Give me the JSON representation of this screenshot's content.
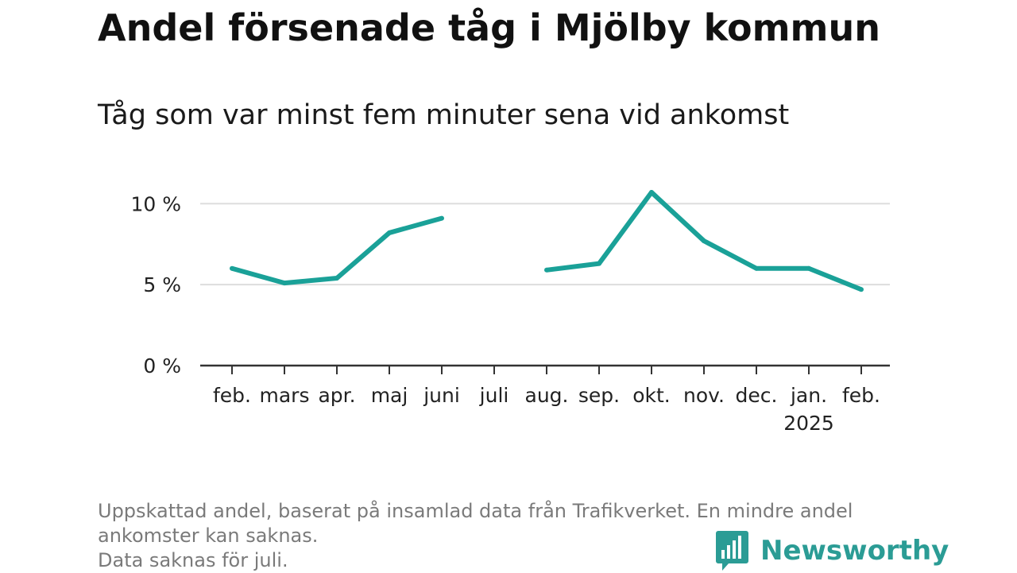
{
  "title": "Andel försenade tåg i Mjölby kommun",
  "subtitle": "Tåg som var minst fem minuter sena vid ankomst",
  "footnote": {
    "line1": "Uppskattad andel, baserat på insamlad data från Trafikverket. En mindre andel",
    "line2": "ankomster kan saknas.",
    "line3": "Data saknas för juli."
  },
  "brand": {
    "name": "Newsworthy",
    "icon": "bar-chart-speech-bubble-icon",
    "color": "#2b9c95"
  },
  "chart_data": {
    "type": "line",
    "categories": [
      "feb.",
      "mars",
      "apr.",
      "maj",
      "juni",
      "juli",
      "aug.",
      "sep.",
      "okt.",
      "nov.",
      "dec.",
      "jan.",
      "feb."
    ],
    "year_labels": [
      "",
      "",
      "",
      "",
      "",
      "",
      "",
      "",
      "",
      "",
      "",
      "2025",
      ""
    ],
    "series": [
      {
        "values": [
          6.0,
          5.1,
          5.4,
          8.2,
          9.1,
          null,
          5.9,
          6.3,
          10.7,
          7.7,
          6.0,
          6.0,
          4.7
        ],
        "color": "#1aa198"
      }
    ],
    "ylim": [
      0,
      10.7
    ],
    "yticks": [
      0,
      5,
      10
    ],
    "ytick_labels": [
      "0 %",
      "5 %",
      "10 %"
    ],
    "grid": true,
    "legend": "none"
  }
}
